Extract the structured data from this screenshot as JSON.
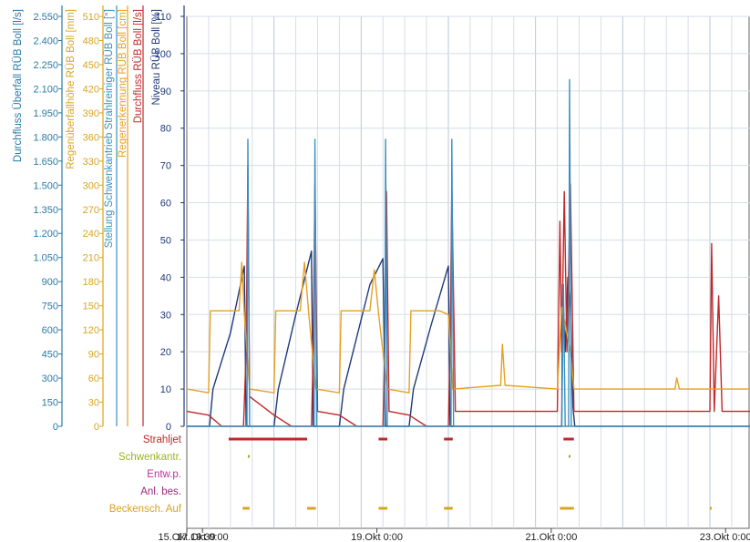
{
  "chart_data": {
    "type": "line",
    "x_ticks": [
      "15.Okt 19:39",
      "17.Okt 0:00",
      "19.Okt 0:00",
      "21.Okt 0:00",
      "23.Okt 0:00"
    ],
    "xlim": [
      "15.Okt 19:39",
      "23.Okt 9:00"
    ],
    "grid": true,
    "y_axes": [
      {
        "id": "ueberfall",
        "label": "Durchfluss Überfall RÜB Boll [l/s]",
        "color": "#2a7ba6",
        "ylim": [
          0,
          2550
        ],
        "ticks": [
          "0",
          "150",
          "300",
          "450",
          "600",
          "750",
          "900",
          "1.050",
          "1.200",
          "1.350",
          "1.500",
          "1.650",
          "1.800",
          "1.950",
          "2.100",
          "2.250",
          "2.400",
          "2.550"
        ]
      },
      {
        "id": "regenhoehe",
        "label": "Regenüberfallhöhe RÜB Boll [mm]",
        "color": "#d9a520",
        "ylim": [
          0,
          510
        ],
        "ticks": [
          "0",
          "30",
          "60",
          "90",
          "120",
          "150",
          "180",
          "210",
          "240",
          "270",
          "300",
          "330",
          "360",
          "390",
          "420",
          "450",
          "480",
          "510"
        ]
      },
      {
        "id": "stellung",
        "label": "Stellung Schwenkantrieb Strahlreiniger RÜB Boll [°]",
        "color": "#3a8fc0"
      },
      {
        "id": "regenerkennung",
        "label": "Regenerkennung RÜB Boll [cm]",
        "color": "#e8a020"
      },
      {
        "id": "durchfluss",
        "label": "Durchfluss RÜB Boll [l/s]",
        "color": "#c0282a"
      },
      {
        "id": "niveau",
        "label": "Niveau RÜB Boll [%]",
        "color": "#1e3a7a",
        "ylim": [
          0,
          110
        ],
        "ticks": [
          "0",
          "10",
          "20",
          "30",
          "40",
          "50",
          "60",
          "70",
          "80",
          "90",
          "100",
          "110"
        ]
      }
    ],
    "series": [
      {
        "name": "Niveau RÜB Boll [%]",
        "axis": "niveau",
        "color": "#1e3a7a",
        "points": [
          [
            0,
            0
          ],
          [
            0.26,
            0
          ],
          [
            0.3,
            10
          ],
          [
            0.5,
            25
          ],
          [
            0.66,
            43
          ],
          [
            0.68,
            0
          ],
          [
            1.0,
            0
          ],
          [
            1.05,
            10
          ],
          [
            1.25,
            30
          ],
          [
            1.43,
            47
          ],
          [
            1.45,
            0
          ],
          [
            1.75,
            0
          ],
          [
            1.8,
            10
          ],
          [
            2.1,
            38
          ],
          [
            2.25,
            45
          ],
          [
            2.28,
            0
          ],
          [
            2.55,
            0
          ],
          [
            2.6,
            10
          ],
          [
            2.8,
            27
          ],
          [
            3.0,
            43
          ],
          [
            3.02,
            0
          ],
          [
            4.3,
            0
          ],
          [
            4.31,
            38
          ],
          [
            4.34,
            20
          ],
          [
            4.37,
            40
          ],
          [
            4.4,
            32
          ],
          [
            4.43,
            5
          ],
          [
            4.45,
            0
          ],
          [
            6.46,
            0
          ]
        ]
      },
      {
        "name": "Durchfluss RÜB Boll [l/s]",
        "axis": "niveau",
        "color": "#c0282a",
        "points": [
          [
            0,
            4
          ],
          [
            0.25,
            3
          ],
          [
            0.4,
            0
          ],
          [
            0.65,
            0
          ],
          [
            0.68,
            20
          ],
          [
            0.7,
            70
          ],
          [
            0.72,
            8
          ],
          [
            1.0,
            3
          ],
          [
            1.2,
            0
          ],
          [
            1.43,
            0
          ],
          [
            1.45,
            20
          ],
          [
            1.47,
            65
          ],
          [
            1.5,
            4
          ],
          [
            1.75,
            3
          ],
          [
            1.95,
            0
          ],
          [
            2.25,
            0
          ],
          [
            2.27,
            20
          ],
          [
            2.29,
            63
          ],
          [
            2.32,
            4
          ],
          [
            2.55,
            3
          ],
          [
            2.75,
            0
          ],
          [
            3.0,
            0
          ],
          [
            3.02,
            20
          ],
          [
            3.04,
            64
          ],
          [
            3.08,
            4
          ],
          [
            4.25,
            4
          ],
          [
            4.28,
            55
          ],
          [
            4.3,
            20
          ],
          [
            4.33,
            63
          ],
          [
            4.36,
            20
          ],
          [
            4.4,
            65
          ],
          [
            4.44,
            4
          ],
          [
            6.0,
            4
          ],
          [
            6.02,
            49
          ],
          [
            6.05,
            4
          ],
          [
            6.1,
            35
          ],
          [
            6.14,
            4
          ],
          [
            6.46,
            4
          ]
        ]
      },
      {
        "name": "Regenüberfallhöhe RÜB Boll [mm]",
        "axis": "niveau",
        "color": "#e8a020",
        "points": [
          [
            0,
            10
          ],
          [
            0.25,
            9
          ],
          [
            0.27,
            31
          ],
          [
            0.6,
            31
          ],
          [
            0.63,
            44
          ],
          [
            0.66,
            30
          ],
          [
            0.72,
            10
          ],
          [
            1.0,
            9
          ],
          [
            1.02,
            31
          ],
          [
            1.3,
            31
          ],
          [
            1.35,
            44
          ],
          [
            1.4,
            30
          ],
          [
            1.48,
            10
          ],
          [
            1.75,
            9
          ],
          [
            1.77,
            31
          ],
          [
            2.1,
            31
          ],
          [
            2.15,
            42
          ],
          [
            2.2,
            30
          ],
          [
            2.3,
            10
          ],
          [
            2.55,
            9
          ],
          [
            2.57,
            31
          ],
          [
            2.9,
            31
          ],
          [
            3.0,
            30
          ],
          [
            3.05,
            10
          ],
          [
            3.6,
            11
          ],
          [
            3.62,
            22
          ],
          [
            3.65,
            11
          ],
          [
            4.25,
            10
          ],
          [
            4.3,
            32
          ],
          [
            4.36,
            25
          ],
          [
            4.4,
            20
          ],
          [
            4.44,
            10
          ],
          [
            5.6,
            10
          ],
          [
            5.62,
            13
          ],
          [
            5.65,
            10
          ],
          [
            6.46,
            10
          ]
        ]
      },
      {
        "name": "Stellung Schwenkantrieb Strahlreiniger RÜB Boll [°]",
        "axis": "niveau",
        "color": "#3a8fc0",
        "points": [
          [
            0,
            0
          ],
          [
            0.69,
            0
          ],
          [
            0.7,
            77
          ],
          [
            0.72,
            0
          ],
          [
            1.46,
            0
          ],
          [
            1.47,
            77
          ],
          [
            1.49,
            0
          ],
          [
            2.27,
            0
          ],
          [
            2.28,
            77
          ],
          [
            2.3,
            0
          ],
          [
            3.03,
            0
          ],
          [
            3.04,
            77
          ],
          [
            3.06,
            0
          ],
          [
            4.3,
            0
          ],
          [
            4.32,
            38
          ],
          [
            4.34,
            0
          ],
          [
            4.38,
            0
          ],
          [
            4.39,
            93
          ],
          [
            4.41,
            0
          ],
          [
            6.46,
            0
          ]
        ]
      }
    ],
    "status_rows": [
      {
        "label": "Strahljet",
        "color": "#c0282a"
      },
      {
        "label": "Schwenkantr.",
        "color": "#9ab520"
      },
      {
        "label": "Entw.p.",
        "color": "#c2309a"
      },
      {
        "label": "Anl. bes.",
        "color": "#9a2a7a"
      },
      {
        "label": "Beckensch. Auf",
        "color": "#d9a520"
      }
    ],
    "status_events": [
      {
        "row": 0,
        "ranges": [
          [
            0.64,
            0.72
          ],
          [
            1.38,
            0.48
          ],
          [
            2.2,
            2.3
          ],
          [
            2.95,
            3.05
          ],
          [
            4.32,
            4.44
          ]
        ]
      },
      {
        "row": 1,
        "ranges": [
          [
            0.7,
            0.72
          ],
          [
            4.38,
            4.4
          ]
        ]
      },
      {
        "row": 4,
        "ranges": [
          [
            0.64,
            0.72
          ],
          [
            1.38,
            1.48
          ],
          [
            2.2,
            2.3
          ],
          [
            2.95,
            3.05
          ],
          [
            4.28,
            4.44
          ],
          [
            6.0,
            6.02
          ]
        ]
      }
    ]
  }
}
